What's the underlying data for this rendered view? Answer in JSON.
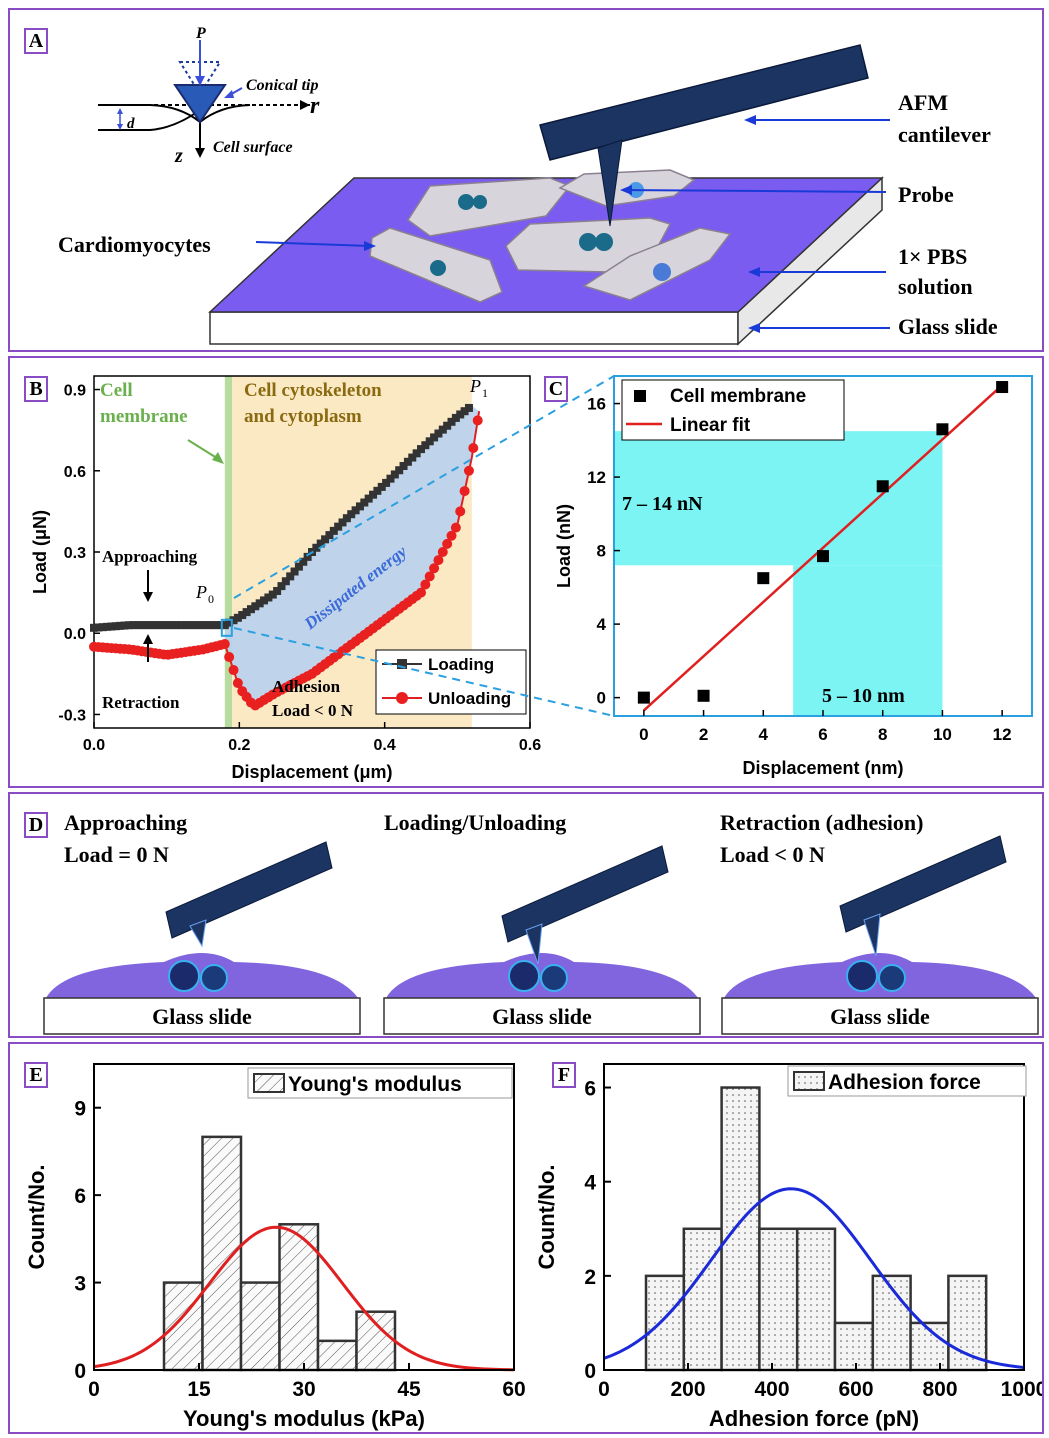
{
  "panelA": {
    "label": "A",
    "inset": {
      "P": "P",
      "conical_tip": "Conical tip",
      "r": "r",
      "d": "d",
      "z": "z",
      "cell_surface": "Cell surface"
    },
    "labels": {
      "cantilever_1": "AFM",
      "cantilever_2": "cantilever",
      "probe": "Probe",
      "pbs_1": "1× PBS",
      "pbs_2": "solution",
      "glass": "Glass slide",
      "cardio": "Cardiomyocytes"
    }
  },
  "panelB": {
    "label": "B",
    "region_membrane_1": "Cell",
    "region_membrane_2": "membrane",
    "region_cyto_1": "Cell cytoskeleton",
    "region_cyto_2": "and cytoplasm",
    "approaching": "Approaching",
    "retraction": "Retraction",
    "adhesion_1": "Adhesion",
    "adhesion_2": "Load < 0 N",
    "dissipated": "Dissipated energy",
    "p0": "P",
    "p0_sub": "0",
    "p1": "P",
    "p1_sub": "1",
    "xlabel": "Displacement (μm)",
    "ylabel": "Load (μN)",
    "xticks": [
      "0.0",
      "0.2",
      "0.4",
      "0.6"
    ],
    "yticks": [
      "-0.3",
      "0.0",
      "0.3",
      "0.6",
      "0.9"
    ],
    "legend": [
      "Loading",
      "Unloading"
    ]
  },
  "panelC": {
    "label": "C",
    "legend": [
      "Cell membrane",
      "Linear fit"
    ],
    "range_load": "7 – 14 nN",
    "range_disp": "5 – 10 nm",
    "xlabel": "Displacement (nm)",
    "ylabel": "Load (nN)",
    "xticks": [
      "0",
      "2",
      "4",
      "6",
      "8",
      "10",
      "12"
    ],
    "yticks": [
      "0",
      "4",
      "8",
      "12",
      "16"
    ]
  },
  "panelD": {
    "label": "D",
    "stages": [
      {
        "title_1": "Approaching",
        "title_2": "Load = 0 N",
        "slide": "Glass slide"
      },
      {
        "title_1": "Loading/Unloading",
        "title_2": "",
        "slide": "Glass slide"
      },
      {
        "title_1": "Retraction (adhesion)",
        "title_2": "Load < 0 N",
        "slide": "Glass slide"
      }
    ]
  },
  "panelE": {
    "label": "E",
    "legend": "Young's modulus",
    "xlabel": "Young's modulus (kPa)",
    "ylabel": "Count/No.",
    "xticks": [
      "0",
      "15",
      "30",
      "45",
      "60"
    ],
    "yticks": [
      "0",
      "3",
      "6",
      "9"
    ]
  },
  "panelF": {
    "label": "F",
    "legend": "Adhesion force",
    "xlabel": "Adhesion force (pN)",
    "ylabel": "Count/No.",
    "xticks": [
      "0",
      "200",
      "400",
      "600",
      "800",
      "1000"
    ],
    "yticks": [
      "0",
      "2",
      "4",
      "6"
    ]
  },
  "chart_data": [
    {
      "type": "line",
      "panel": "B",
      "xlabel": "Displacement (μm)",
      "ylabel": "Load (μN)",
      "xlim": [
        0,
        0.6
      ],
      "ylim": [
        -0.35,
        0.95
      ],
      "series": [
        {
          "name": "Loading",
          "x": [
            0.0,
            0.05,
            0.1,
            0.15,
            0.18,
            0.2,
            0.25,
            0.3,
            0.35,
            0.4,
            0.45,
            0.5,
            0.52
          ],
          "y": [
            0.02,
            0.03,
            0.03,
            0.03,
            0.03,
            0.06,
            0.15,
            0.3,
            0.43,
            0.55,
            0.68,
            0.8,
            0.84
          ]
        },
        {
          "name": "Unloading",
          "x": [
            0.0,
            0.05,
            0.1,
            0.15,
            0.18,
            0.2,
            0.22,
            0.25,
            0.3,
            0.35,
            0.4,
            0.45,
            0.5,
            0.52,
            0.53
          ],
          "y": [
            -0.05,
            -0.06,
            -0.08,
            -0.06,
            -0.04,
            -0.2,
            -0.27,
            -0.22,
            -0.15,
            -0.05,
            0.05,
            0.15,
            0.4,
            0.65,
            0.82
          ]
        }
      ]
    },
    {
      "type": "scatter",
      "panel": "C",
      "xlabel": "Displacement (nm)",
      "ylabel": "Load (nN)",
      "xlim": [
        -1,
        13
      ],
      "ylim": [
        -1,
        17.5
      ],
      "series": [
        {
          "name": "Cell membrane",
          "x": [
            0,
            2,
            4,
            6,
            8,
            10,
            12
          ],
          "y": [
            0,
            0.1,
            6.5,
            7.7,
            11.5,
            14.6,
            16.9
          ]
        },
        {
          "name": "Linear fit",
          "x": [
            0,
            12
          ],
          "y": [
            -0.7,
            17.0
          ]
        }
      ]
    },
    {
      "type": "bar",
      "panel": "E",
      "xlabel": "Young's modulus (kPa)",
      "ylabel": "Count/No.",
      "xlim": [
        0,
        60
      ],
      "ylim": [
        0,
        10.5
      ],
      "bin_edges": [
        10,
        15.5,
        21,
        26.5,
        32,
        37.5,
        43
      ],
      "values": [
        3,
        8,
        3,
        5,
        1,
        2
      ],
      "fit": {
        "type": "gaussian",
        "mean": 26,
        "sd": 9.5,
        "peak": 4.9
      }
    },
    {
      "type": "bar",
      "panel": "F",
      "xlabel": "Adhesion force (pN)",
      "ylabel": "Count/No.",
      "xlim": [
        0,
        1000
      ],
      "ylim": [
        0,
        6.5
      ],
      "bin_edges": [
        100,
        190,
        280,
        370,
        460,
        550,
        640,
        730,
        820,
        910
      ],
      "values": [
        2,
        3,
        6,
        3,
        3,
        1,
        2,
        1,
        2
      ],
      "fit": {
        "type": "gaussian",
        "mean": 445,
        "sd": 190,
        "peak": 3.85
      }
    }
  ]
}
